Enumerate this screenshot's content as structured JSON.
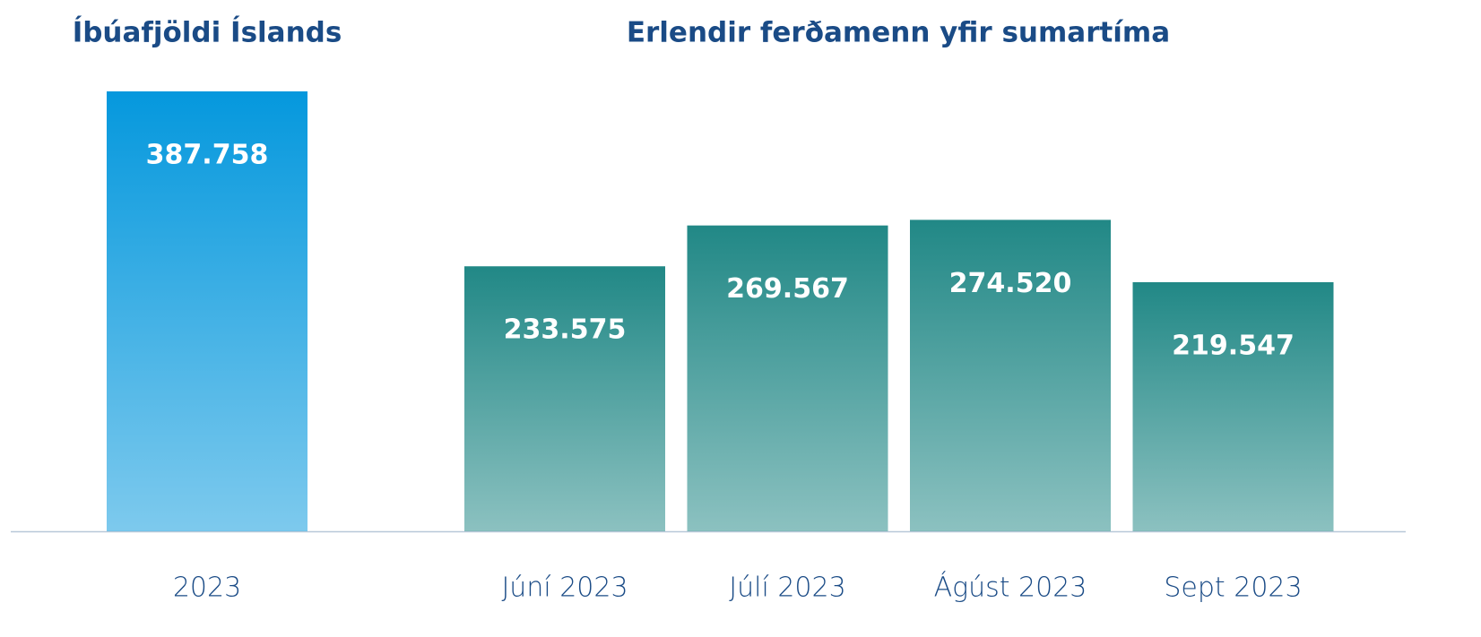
{
  "chart_data": [
    {
      "type": "bar",
      "title": "Íbúafjöldi Íslands",
      "categories": [
        "2023"
      ],
      "values": [
        387758
      ],
      "value_labels": [
        "387.758"
      ],
      "color": "#0598dd"
    },
    {
      "type": "bar",
      "title": "Erlendir ferðamenn yfir sumartíma",
      "categories": [
        "Júní 2023",
        "Júlí 2023",
        "Ágúst 2023",
        "Sept 2023"
      ],
      "values": [
        233575,
        269567,
        274520,
        219547
      ],
      "value_labels": [
        "233.575",
        "269.567",
        "274.520",
        "219.547"
      ],
      "color": "#218886"
    }
  ]
}
